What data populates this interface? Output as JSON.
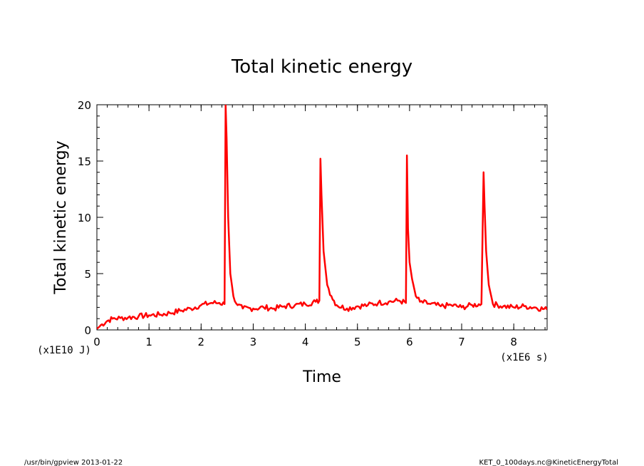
{
  "chart_data": {
    "type": "line",
    "title": "Total kinetic energy",
    "xlabel": "Time",
    "ylabel": "Total kinetic energy",
    "x_unit": "(x1E6 s)",
    "y_unit": "(x1E10 J)",
    "xlim": [
      0,
      8.64
    ],
    "ylim": [
      0,
      20
    ],
    "x_ticks": [
      0,
      1,
      2,
      3,
      4,
      5,
      6,
      7,
      8
    ],
    "y_ticks": [
      0,
      5,
      10,
      15,
      20
    ],
    "line_color": "#ff0000",
    "grid": false,
    "series": [
      {
        "x": [
          0,
          0.05,
          0.1,
          0.2,
          0.3,
          0.45,
          0.6,
          0.8,
          1.0,
          1.2,
          1.4,
          1.6,
          1.8,
          2.0,
          2.2,
          2.35,
          2.45,
          2.47,
          2.49,
          2.52,
          2.56,
          2.62,
          2.7,
          2.8,
          3.0,
          3.2,
          3.4,
          3.6,
          3.8,
          4.0,
          4.2,
          4.27,
          4.29,
          4.31,
          4.35,
          4.42,
          4.5,
          4.6,
          4.8,
          5.0,
          5.2,
          5.4,
          5.6,
          5.8,
          5.93,
          5.95,
          5.97,
          6.0,
          6.05,
          6.12,
          6.2,
          6.4,
          6.6,
          6.8,
          7.0,
          7.2,
          7.38,
          7.42,
          7.44,
          7.47,
          7.52,
          7.6,
          7.8,
          8.0,
          8.2,
          8.4,
          8.64
        ],
        "y": [
          0.1,
          0.3,
          0.5,
          0.8,
          1.0,
          1.05,
          1.1,
          1.2,
          1.3,
          1.35,
          1.5,
          1.7,
          1.9,
          2.2,
          2.4,
          2.4,
          2.3,
          20,
          17,
          10,
          5,
          3,
          2.2,
          1.9,
          1.9,
          2.0,
          1.9,
          2.1,
          2.2,
          2.3,
          2.5,
          2.6,
          15.2,
          12,
          7,
          4,
          3,
          2.2,
          1.9,
          2.1,
          2.2,
          2.4,
          2.5,
          2.6,
          2.4,
          15.5,
          9,
          6,
          4.5,
          3,
          2.5,
          2.3,
          2.1,
          2.2,
          2.0,
          2.2,
          2.3,
          14,
          11,
          7,
          4,
          2.3,
          2.1,
          2.0,
          2.1,
          2.0,
          1.8
        ]
      }
    ]
  },
  "footer": {
    "left": "/usr/bin/gpview   2013-01-22",
    "right": "KET_0_100days.nc@KineticEnergyTotal"
  }
}
